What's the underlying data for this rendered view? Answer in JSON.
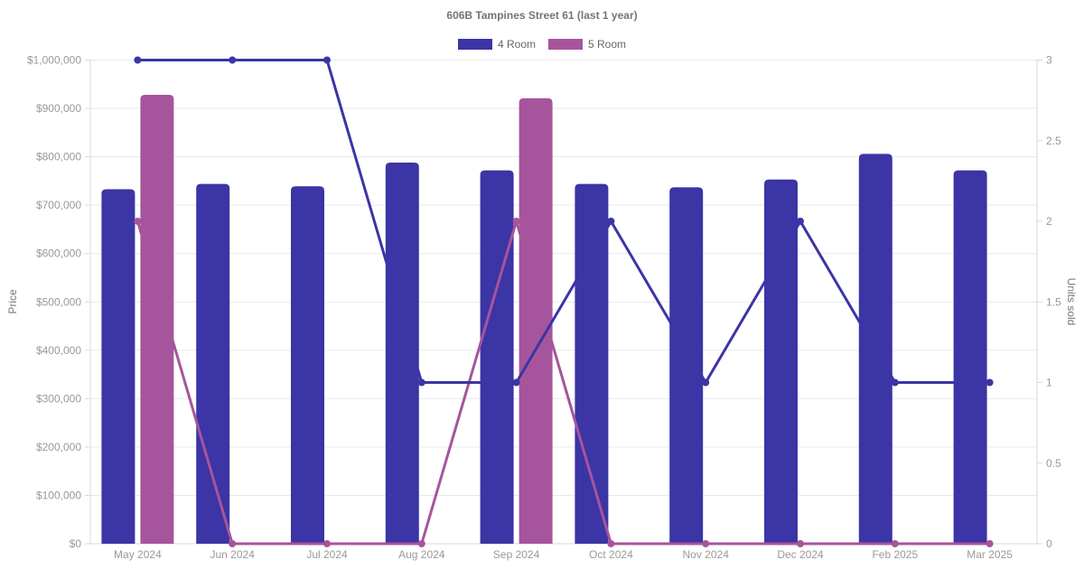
{
  "title": "606B Tampines Street 61 (last 1 year)",
  "legend": [
    {
      "label": "4 Room",
      "color": "#3b35a5"
    },
    {
      "label": "5 Room",
      "color": "#a6559d"
    }
  ],
  "axes": {
    "left_title": "Price",
    "right_title": "Units sold"
  },
  "chart_data": {
    "type": "bar",
    "subtype": "combo-bar-line-dual-axis",
    "title": "606B Tampines Street 61 (last 1 year)",
    "categories": [
      "May 2024",
      "Jun 2024",
      "Jul 2024",
      "Aug 2024",
      "Sep 2024",
      "Oct 2024",
      "Nov 2024",
      "Dec 2024",
      "Feb 2025",
      "Mar 2025"
    ],
    "series": [
      {
        "name": "4 Room",
        "type": "bar",
        "axis": "left",
        "measure": "price",
        "color": "#3b35a5",
        "values": [
          733000,
          744000,
          739000,
          788000,
          772000,
          744000,
          737000,
          753000,
          806000,
          772000
        ]
      },
      {
        "name": "5 Room",
        "type": "bar",
        "axis": "left",
        "measure": "price",
        "color": "#a6559d",
        "values": [
          928000,
          null,
          null,
          null,
          921000,
          null,
          null,
          null,
          null,
          null
        ]
      },
      {
        "name": "4 Room",
        "type": "line",
        "axis": "right",
        "measure": "units_sold",
        "color": "#3b35a5",
        "values": [
          3,
          3,
          3,
          1,
          1,
          2,
          1,
          2,
          1,
          1
        ]
      },
      {
        "name": "5 Room",
        "type": "line",
        "axis": "right",
        "measure": "units_sold",
        "color": "#a6559d",
        "values": [
          2,
          0,
          0,
          0,
          2,
          0,
          0,
          0,
          0,
          0
        ]
      }
    ],
    "left_axis": {
      "label": "Price",
      "min": 0,
      "max": 1000000,
      "step": 100000,
      "tick_labels": [
        "$0",
        "$100,000",
        "$200,000",
        "$300,000",
        "$400,000",
        "$500,000",
        "$600,000",
        "$700,000",
        "$800,000",
        "$900,000",
        "$1,000,000"
      ]
    },
    "right_axis": {
      "label": "Units sold",
      "min": 0,
      "max": 3,
      "step": 0.5,
      "tick_labels": [
        "0",
        "0.5",
        "1",
        "1.5",
        "2",
        "2.5",
        "3"
      ]
    },
    "grid": "horizontal-only",
    "legend_position": "top",
    "colors": {
      "grid_line": "#e9e9e9",
      "axis_line": "#d9d9d9",
      "tick_text": "#999999",
      "title_text": "#757575"
    }
  }
}
